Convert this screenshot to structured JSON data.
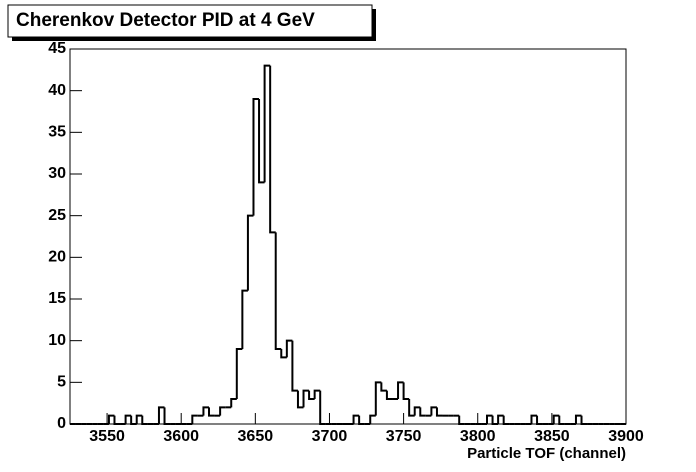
{
  "chart_data": {
    "type": "histogram",
    "title": "Cherenkov Detector PID at 4 GeV",
    "x_label": "Particle TOF (channel)",
    "bins": [
      3525,
      3528.75,
      3532.5,
      3536.25,
      3540,
      3543.75,
      3547.5,
      3551.25,
      3555,
      3558.75,
      3562.5,
      3566.25,
      3570,
      3573.75,
      3577.5,
      3581.25,
      3585,
      3588.75,
      3592.5,
      3596.25,
      3600,
      3603.75,
      3607.5,
      3611.25,
      3615,
      3618.75,
      3622.5,
      3626.25,
      3630,
      3633.75,
      3637.5,
      3641.25,
      3645,
      3648.75,
      3652.5,
      3656.25,
      3660,
      3663.75,
      3667.5,
      3671.25,
      3675,
      3678.75,
      3682.5,
      3686.25,
      3690,
      3693.75,
      3697.5,
      3701.25,
      3705,
      3708.75,
      3712.5,
      3716.25,
      3720,
      3723.75,
      3727.5,
      3731.25,
      3735,
      3738.75,
      3742.5,
      3746.25,
      3750,
      3753.75,
      3757.5,
      3761.25,
      3765,
      3768.75,
      3772.5,
      3776.25,
      3780,
      3783.75,
      3787.5,
      3791.25,
      3795,
      3798.75,
      3802.5,
      3806.25,
      3810,
      3813.75,
      3817.5,
      3821.25,
      3825,
      3828.75,
      3832.5,
      3836.25,
      3840,
      3843.75,
      3847.5,
      3851.25,
      3855,
      3858.75,
      3862.5,
      3866.25,
      3870,
      3873.75,
      3877.5,
      3881.25,
      3885,
      3888.75,
      3892.5,
      3896.25,
      3900
    ],
    "counts": [
      0,
      0,
      0,
      0,
      0,
      0,
      0,
      1,
      0,
      0,
      1,
      0,
      1,
      0,
      0,
      0,
      2,
      0,
      0,
      0,
      0,
      0,
      1,
      1,
      2,
      1,
      1,
      2,
      2,
      3,
      9,
      16,
      25,
      39,
      29,
      43,
      23,
      9,
      8,
      10,
      4,
      2,
      4,
      3,
      4,
      0,
      0,
      0,
      0,
      0,
      0,
      1,
      0,
      0,
      1,
      5,
      4,
      3,
      3,
      5,
      3,
      1,
      2,
      1,
      1,
      2,
      1,
      1,
      1,
      1,
      0,
      0,
      0,
      0,
      0,
      1,
      0,
      1,
      0,
      0,
      0,
      0,
      0,
      1,
      0,
      0,
      0,
      1,
      0,
      0,
      0,
      1,
      0,
      0,
      0,
      0,
      0,
      0,
      0,
      0
    ],
    "color": "#000000",
    "xlim": [
      3525,
      3900
    ],
    "xticks": [
      3550,
      3600,
      3650,
      3700,
      3750,
      3800,
      3850,
      3900
    ],
    "ylim": [
      0,
      45
    ],
    "yticks": [
      0,
      5,
      10,
      15,
      20,
      25,
      30,
      35,
      40,
      45
    ]
  }
}
